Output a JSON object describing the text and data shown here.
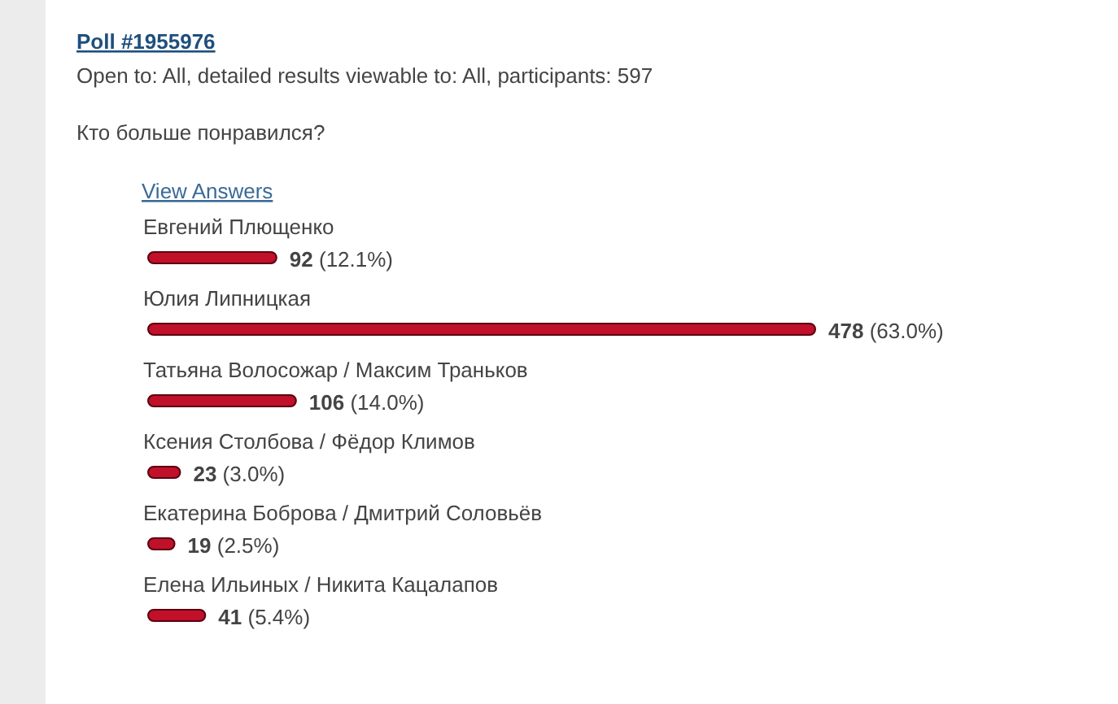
{
  "chart_data": {
    "type": "bar",
    "orientation": "horizontal",
    "title": "Poll #1955976",
    "subtitle": "Open to: All, detailed results viewable to: All, participants: 597",
    "annotations": [
      "Кто больше понравился?",
      "View Answers"
    ],
    "categories": [
      "Евгений Плющенко",
      "Юлия Липницкая",
      "Татьяна Волосожар / Максим Траньков",
      "Ксения Столбова / Фёдор Климов",
      "Екатерина Боброва / Дмитрий Соловьёв",
      "Елена Ильиных / Никита Кацалапов"
    ],
    "values": [
      92,
      478,
      106,
      23,
      19,
      41
    ],
    "value_labels": [
      "92 (12.1%)",
      "478 (63.0%)",
      "106 (14.0%)",
      "23 (3.0%)",
      "19 (2.5%)",
      "41 (5.4%)"
    ],
    "color": "#c0102a"
  }
}
